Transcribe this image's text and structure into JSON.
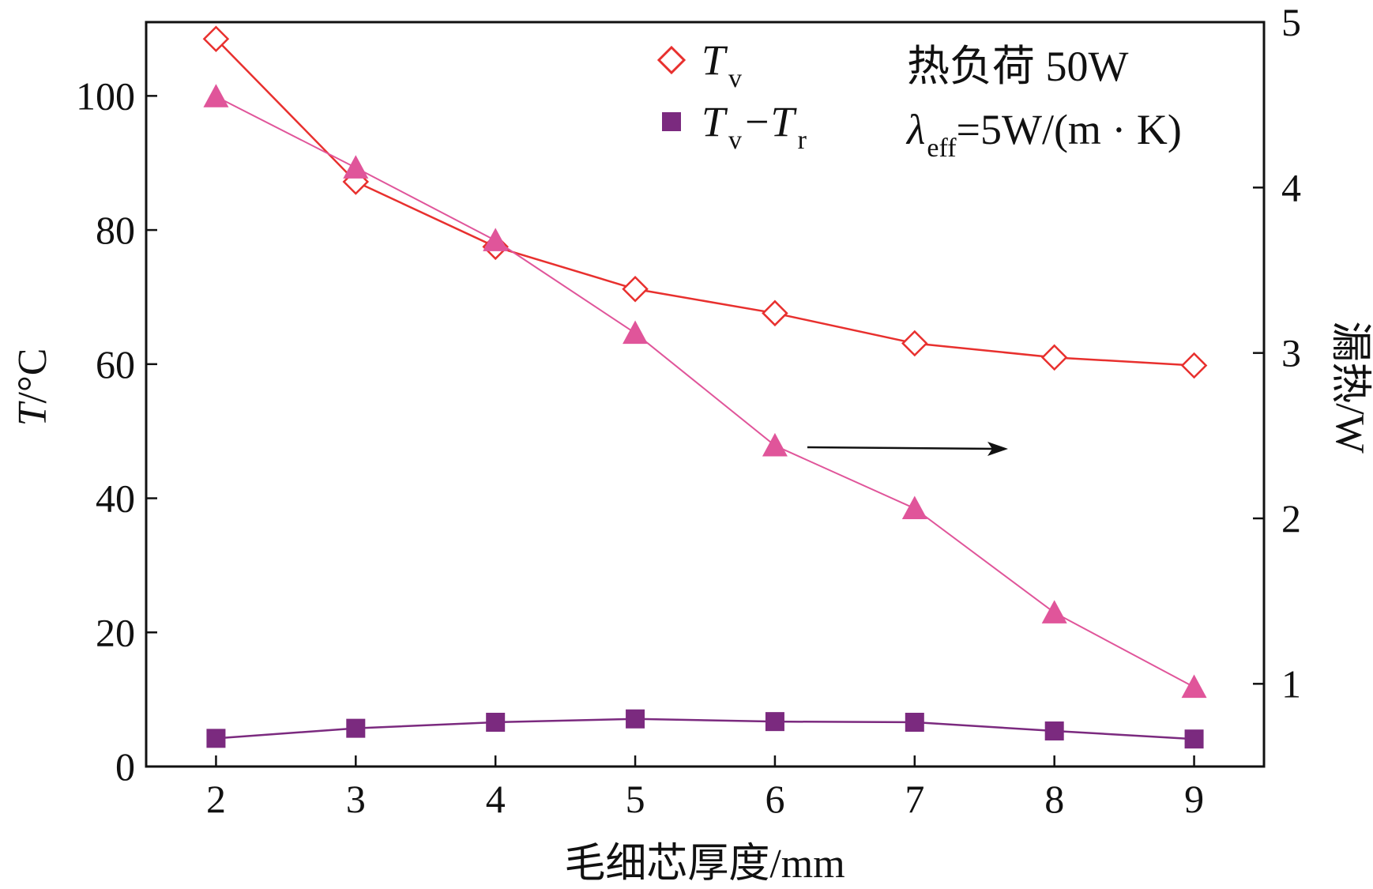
{
  "chart_data": {
    "type": "line",
    "x": [
      2,
      3,
      4,
      5,
      6,
      7,
      8,
      9
    ],
    "xlabel": "毛细芯厚度/mm",
    "ylabel": {
      "italic": "T",
      "rest": "/°C"
    },
    "y2label": "漏热/W",
    "xlim": [
      1.5,
      9.5
    ],
    "ylim": [
      0,
      111
    ],
    "y2lim": [
      0.5,
      5
    ],
    "xticks": [
      "2",
      "3",
      "4",
      "5",
      "6",
      "7",
      "8",
      "9"
    ],
    "yticks": [
      "0",
      "20",
      "40",
      "60",
      "80",
      "100"
    ],
    "y2ticks": [
      "1",
      "2",
      "3",
      "4",
      "5"
    ],
    "series": [
      {
        "name": {
          "main": "T",
          "sub": "v"
        },
        "axis": "left",
        "marker": "open-diamond",
        "color": "#e8302e",
        "values": [
          108.5,
          87.2,
          77.5,
          71.2,
          67.6,
          63.1,
          61.0,
          59.8
        ]
      },
      {
        "name": {
          "main": "T",
          "sub": "v",
          "main2": "T",
          "sub2": "r"
        },
        "axis": "left",
        "marker": "filled-square",
        "color": "#7b2a7f",
        "values": [
          4.2,
          5.7,
          6.6,
          7.1,
          6.7,
          6.6,
          5.3,
          4.1
        ]
      },
      {
        "name": null,
        "axis": "right",
        "marker": "filled-triangle",
        "color": "#e0559a",
        "values": [
          4.55,
          4.12,
          3.68,
          3.12,
          2.44,
          2.06,
          1.43,
          0.98
        ]
      }
    ],
    "annotations": {
      "load": "热负荷 50W",
      "lambda_symbol": "λ",
      "lambda_sub": "eff",
      "lambda_value": "=5W/(m · K)"
    },
    "grid": false,
    "legend_position": "top-center"
  }
}
